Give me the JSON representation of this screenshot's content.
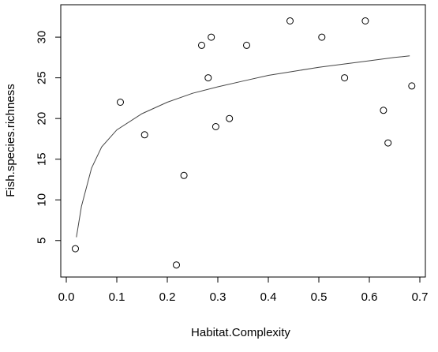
{
  "chart_data": {
    "type": "scatter",
    "title": "",
    "xlabel": "Habitat.Complexity",
    "ylabel": "Fish.species.richness",
    "xlim": [
      0.0,
      0.7
    ],
    "ylim": [
      1.0,
      33.5
    ],
    "xticks": [
      0.0,
      0.1,
      0.2,
      0.3,
      0.4,
      0.5,
      0.6,
      0.7
    ],
    "xtick_labels": [
      "0.0",
      "0.1",
      "0.2",
      "0.3",
      "0.4",
      "0.5",
      "0.6",
      "0.7"
    ],
    "yticks": [
      5,
      10,
      15,
      20,
      25,
      30
    ],
    "ytick_labels": [
      "5",
      "10",
      "15",
      "20",
      "25",
      "30"
    ],
    "grid": false,
    "legend": "none",
    "series": [
      {
        "kind": "points",
        "marker": "open-circle",
        "color": "#000000",
        "points": [
          {
            "x": 0.018,
            "y": 4
          },
          {
            "x": 0.107,
            "y": 22
          },
          {
            "x": 0.155,
            "y": 18
          },
          {
            "x": 0.218,
            "y": 2
          },
          {
            "x": 0.233,
            "y": 13
          },
          {
            "x": 0.268,
            "y": 29
          },
          {
            "x": 0.281,
            "y": 25
          },
          {
            "x": 0.287,
            "y": 30
          },
          {
            "x": 0.296,
            "y": 19
          },
          {
            "x": 0.323,
            "y": 20
          },
          {
            "x": 0.357,
            "y": 29
          },
          {
            "x": 0.443,
            "y": 32
          },
          {
            "x": 0.506,
            "y": 30
          },
          {
            "x": 0.551,
            "y": 25
          },
          {
            "x": 0.592,
            "y": 32
          },
          {
            "x": 0.628,
            "y": 21
          },
          {
            "x": 0.637,
            "y": 17
          },
          {
            "x": 0.684,
            "y": 24
          }
        ]
      },
      {
        "kind": "fitted-curve",
        "model": "logarithmic",
        "color": "#444444",
        "x": [
          0.02,
          0.03,
          0.05,
          0.07,
          0.1,
          0.15,
          0.2,
          0.25,
          0.3,
          0.35,
          0.4,
          0.45,
          0.5,
          0.55,
          0.6,
          0.65,
          0.68
        ],
        "y": [
          5.4,
          9.2,
          13.9,
          16.5,
          18.6,
          20.6,
          22.0,
          23.1,
          23.9,
          24.6,
          25.3,
          25.8,
          26.3,
          26.7,
          27.1,
          27.5,
          27.7
        ]
      }
    ]
  }
}
